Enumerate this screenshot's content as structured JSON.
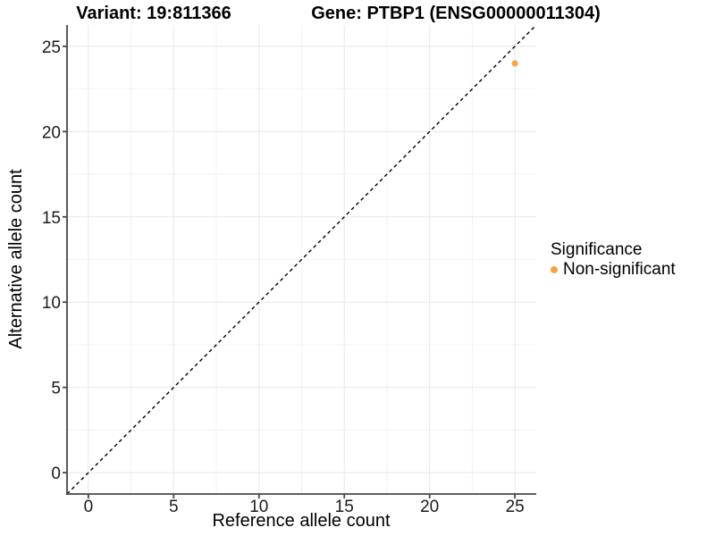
{
  "title": {
    "variant": "Variant: 19:811366",
    "gene": "Gene: PTBP1 (ENSG00000011304)"
  },
  "axes": {
    "x": {
      "label": "Reference allele count"
    },
    "y": {
      "label": "Alternative allele count"
    }
  },
  "legend": {
    "title": "Significance",
    "items": [
      {
        "label": "Non-significant",
        "color": "#FAA23C",
        "marker": "dot"
      }
    ]
  },
  "colors": {
    "background": "#ffffff",
    "axis_line": "#474747",
    "tick_label": "#1a1a1a",
    "grid_major": "#e7e7e7",
    "grid_minor": "#f3f3f3",
    "identity_line": "#000000",
    "point": "#FAA23C"
  },
  "chart_data": {
    "type": "scatter",
    "title": "Variant: 19:811366    Gene: PTBP1 (ENSG00000011304)",
    "xlabel": "Reference allele count",
    "ylabel": "Alternative allele count",
    "xlim": [
      -1.25,
      26.25
    ],
    "ylim": [
      -1.25,
      26.25
    ],
    "xticks": [
      0,
      5,
      10,
      15,
      20,
      25
    ],
    "yticks": [
      0,
      5,
      10,
      15,
      20,
      25
    ],
    "grid": "major+minor",
    "legend_position": "right",
    "legend_title": "Significance",
    "series": [
      {
        "name": "Non-significant",
        "color": "#FAA23C",
        "marker_radius": 3.5,
        "points": [
          {
            "x": 25,
            "y": 24
          }
        ]
      }
    ],
    "reference_line": {
      "kind": "y=x",
      "style": "dashed",
      "color": "#000000"
    }
  }
}
